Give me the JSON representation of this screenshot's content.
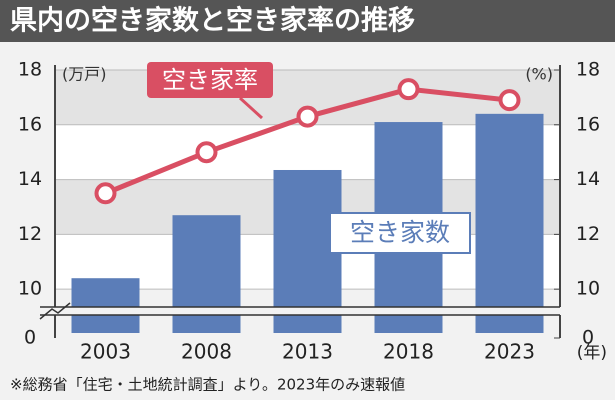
{
  "chart_data": {
    "type": "bar_line",
    "title": "県内の空き家数と空き家率の推移",
    "y_unit": "(万戸)",
    "y2_unit": "(%)",
    "x_unit": "(年)",
    "note": "※総務省「住宅・土地統計調査」より。2023年のみ速報値",
    "categories": [
      "2003",
      "2008",
      "2013",
      "2018",
      "2023"
    ],
    "series": [
      {
        "name": "空き家数",
        "type": "bar",
        "color": "#5b7db8",
        "values": [
          10.4,
          12.7,
          14.35,
          16.1,
          16.4
        ]
      },
      {
        "name": "空き家率",
        "type": "line",
        "axis": "y2",
        "color": "#d94f63",
        "values": [
          13.5,
          15.0,
          16.3,
          17.3,
          16.9
        ]
      }
    ],
    "ylim": [
      8.4,
      18
    ],
    "yticks": [
      0,
      10,
      12,
      14,
      16,
      18
    ],
    "y2lim": [
      8.4,
      18
    ],
    "y2ticks": [
      0,
      10,
      12,
      14,
      16,
      18
    ],
    "axis_break": true
  }
}
